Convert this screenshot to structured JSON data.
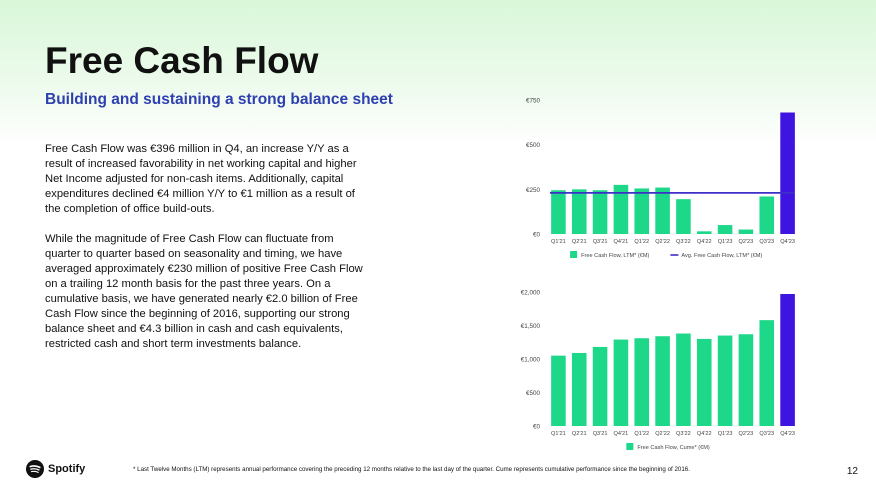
{
  "slide": {
    "title": "Free Cash Flow",
    "subtitle": "Building and sustaining a strong balance sheet",
    "paragraph_1": "Free Cash Flow was €396 million in Q4, an increase Y/Y as a result of increased favorability in net working capital and higher Net Income adjusted for non-cash items. Additionally, capital expenditures declined €4 million Y/Y to €1 million as a result of the completion of office build-outs.",
    "paragraph_2": "While the magnitude of Free Cash Flow can fluctuate from quarter to quarter based on seasonality and timing, we have averaged approximately €230 million of positive Free Cash Flow on a trailing 12 month basis for the past three years. On a cumulative basis, we have generated nearly €2.0 billion of Free Cash Flow since the beginning of 2016, supporting our strong balance sheet and €4.3 billion in cash and cash equivalents, restricted cash and short term investments balance.",
    "logo_text": "Spotify",
    "footnote": "* Last Twelve Months (LTM) represents annual performance covering the preceding 12 months relative to the last day of the quarter. Cume represents cumulative performance since the beginning of 2016.",
    "page_number": "12"
  },
  "colors": {
    "bar_green": "#1ed88a",
    "bar_highlight": "#3d14e0",
    "avg_line": "#3d2fc8",
    "subtitle_blue": "#2e3fb0",
    "axis_text": "#444444"
  },
  "chart_data": [
    {
      "type": "bar",
      "categories": [
        "Q1'21",
        "Q2'21",
        "Q3'21",
        "Q4'21",
        "Q1'22",
        "Q2'22",
        "Q3'22",
        "Q4'22",
        "Q1'23",
        "Q2'23",
        "Q3'23",
        "Q4'23"
      ],
      "series": [
        {
          "name": "Free Cash Flow, LTM* (€M)",
          "values": [
            245,
            250,
            245,
            275,
            255,
            260,
            195,
            15,
            50,
            25,
            210,
            680
          ]
        },
        {
          "name": "Avg. Free Cash Flow, LTM* (€M)",
          "values": [
            230,
            230,
            230,
            230,
            230,
            230,
            230,
            230,
            230,
            230,
            230,
            230
          ],
          "type": "line"
        }
      ],
      "y_ticks": [
        "€0",
        "€250",
        "€500",
        "€750"
      ],
      "ylim": [
        0,
        750
      ],
      "highlight_last": true,
      "legend_position": "bottom"
    },
    {
      "type": "bar",
      "categories": [
        "Q1'21",
        "Q2'21",
        "Q3'21",
        "Q4'21",
        "Q1'22",
        "Q2'22",
        "Q3'22",
        "Q4'22",
        "Q1'23",
        "Q2'23",
        "Q3'23",
        "Q4'23"
      ],
      "series": [
        {
          "name": "Free Cash Flow, Cume* (€M)",
          "values": [
            1050,
            1090,
            1180,
            1290,
            1310,
            1340,
            1380,
            1300,
            1350,
            1370,
            1580,
            1970
          ]
        }
      ],
      "y_ticks": [
        "€0",
        "€500",
        "€1,000",
        "€1,500",
        "€2,000"
      ],
      "ylim": [
        0,
        2000
      ],
      "highlight_last": true,
      "legend_position": "bottom"
    }
  ]
}
